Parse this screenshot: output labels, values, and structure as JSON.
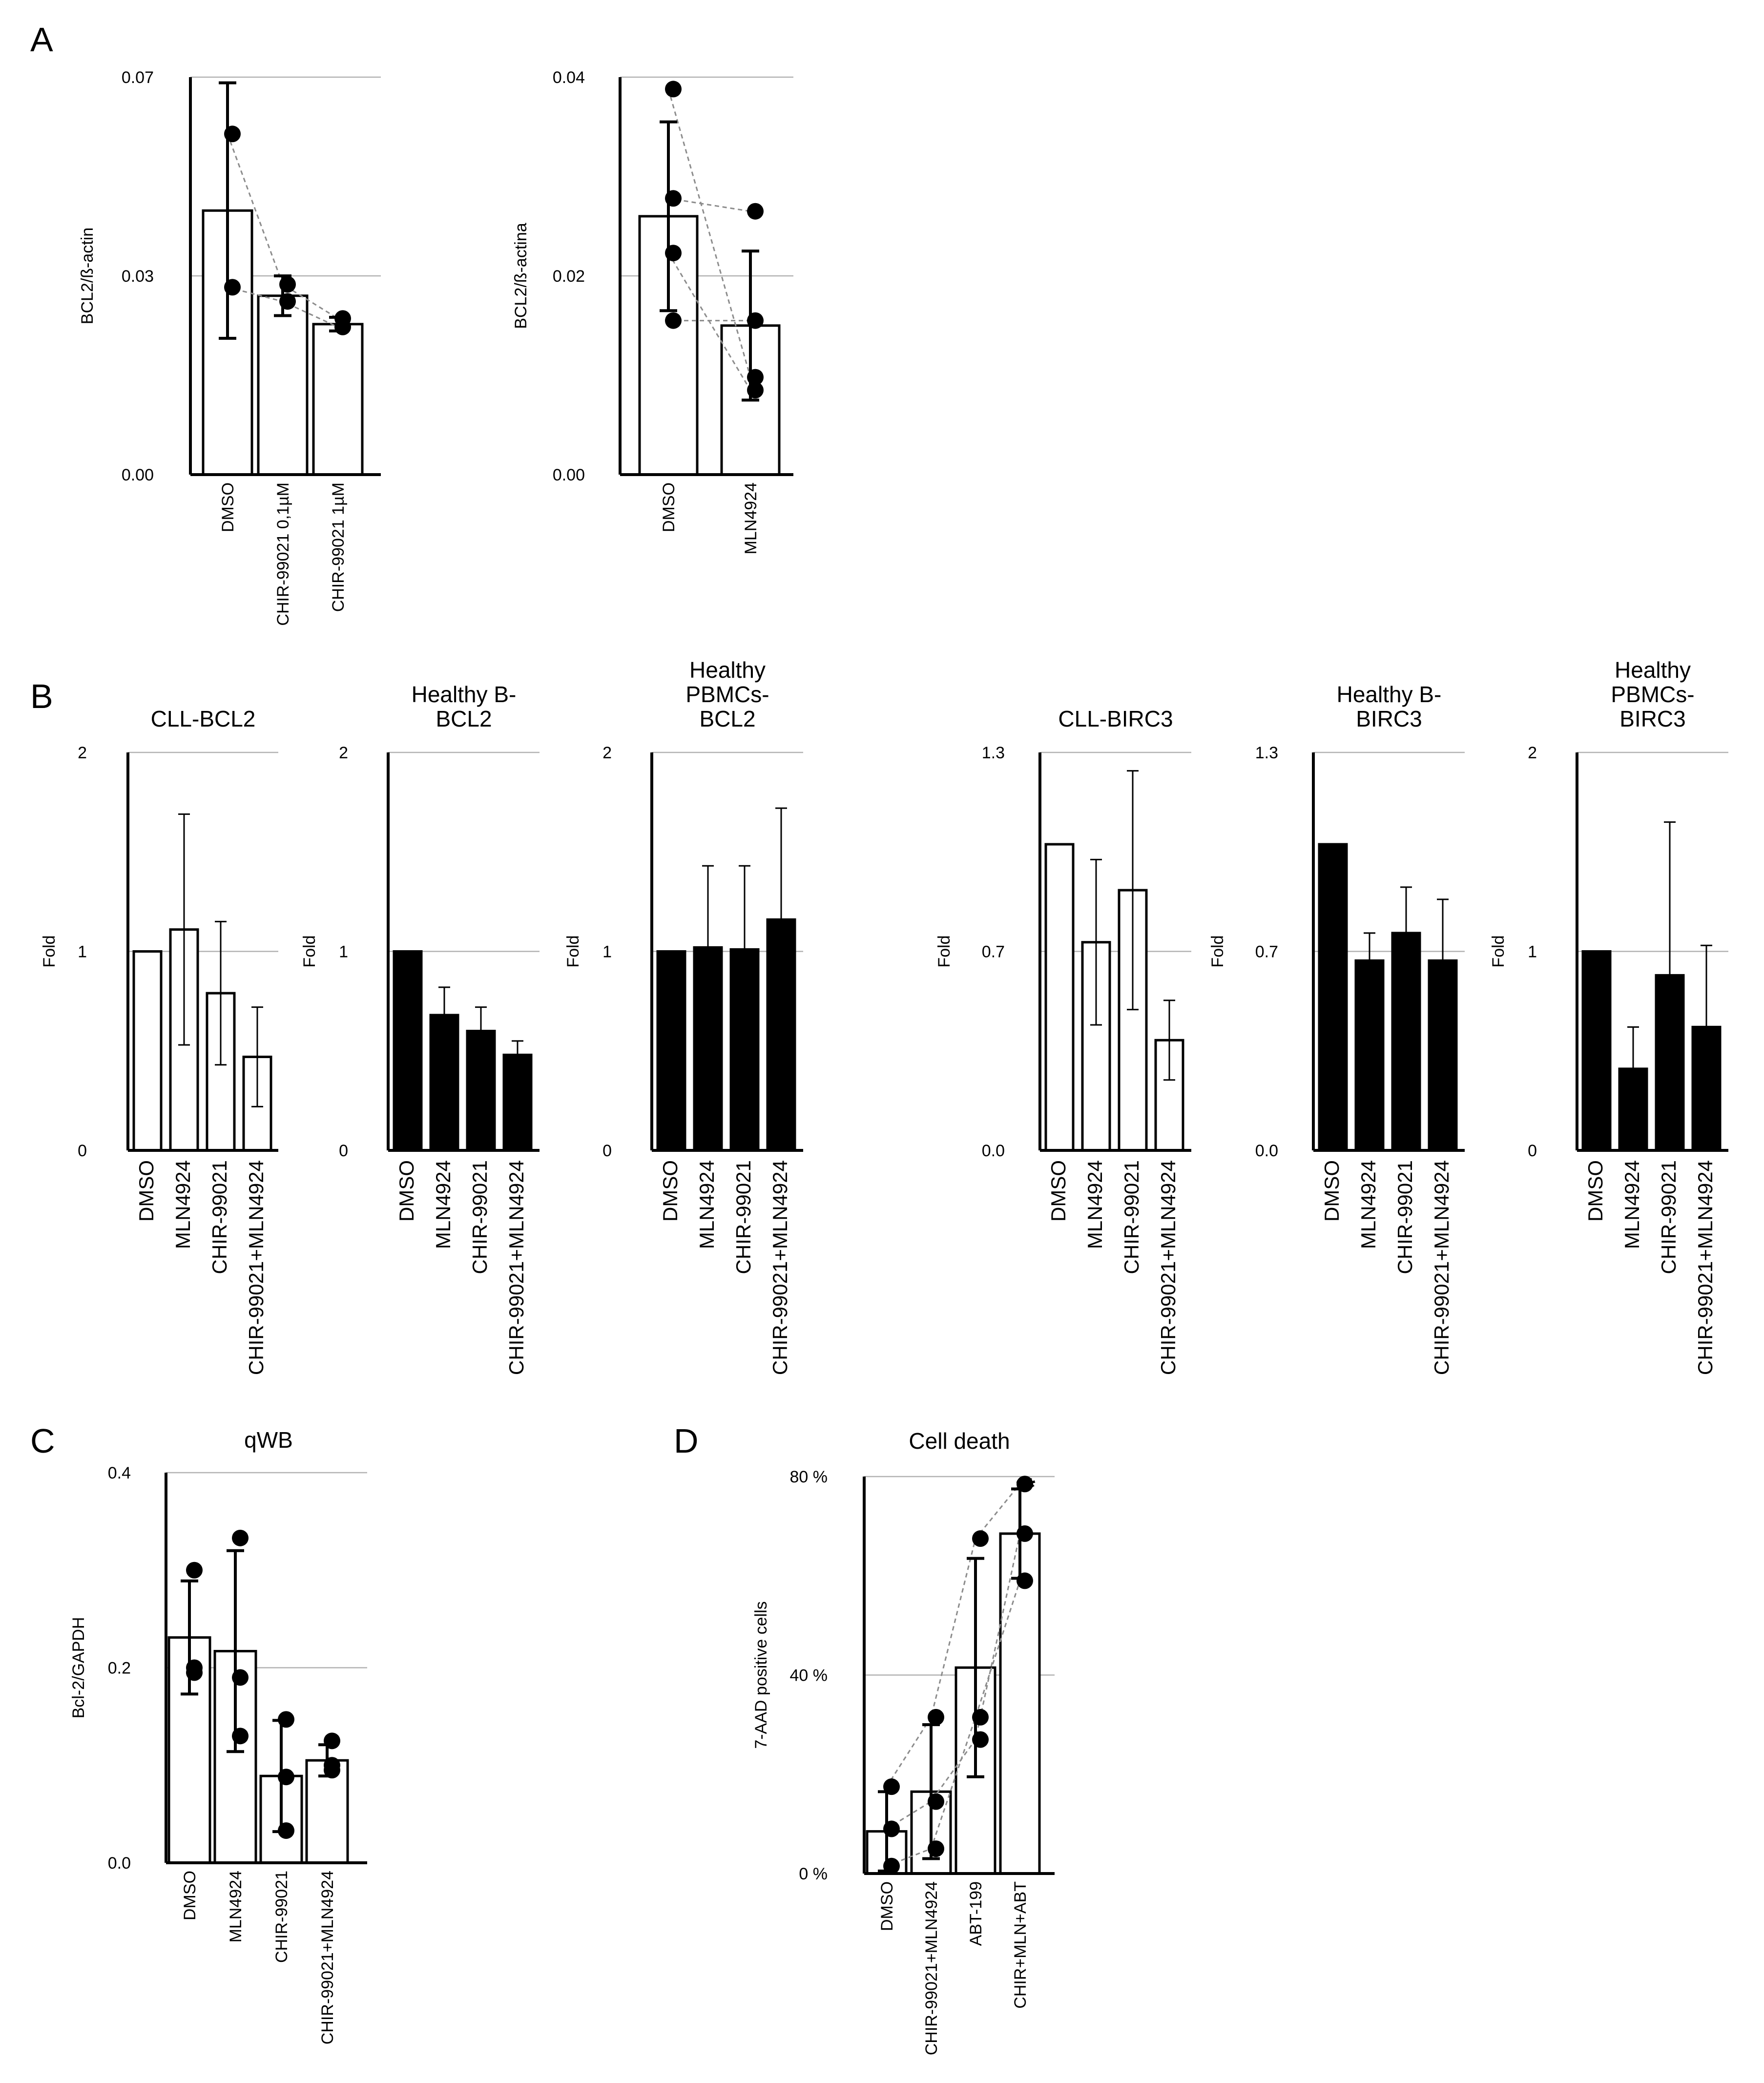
{
  "panel_labels": {
    "A": "A",
    "B": "B",
    "C": "C",
    "D": "D"
  },
  "colors": {
    "open_bar": "#ffffff",
    "filled_bar": "#000000",
    "axis": "#000000",
    "grid": "#b3b3b3",
    "paired_line": "#8c8c8c"
  },
  "chart_data": [
    {
      "id": "A1",
      "type": "bar",
      "title": "",
      "ylabel": "BCL2/ß-actin",
      "ylim": [
        0,
        0.07
      ],
      "yticks": [
        "0.00",
        "0.03",
        "0.07"
      ],
      "gridlines": [
        0.035,
        0.07
      ],
      "categories": [
        "DMSO",
        "CHIR-99021 0,1µM",
        "CHIR-99021 1µM"
      ],
      "values": [
        0.0465,
        0.0315,
        0.0265
      ],
      "errors": [
        0.0225,
        0.0035,
        0.0012
      ],
      "points": [
        [
          0.06,
          0.033
        ],
        [
          0.0335,
          0.0305
        ],
        [
          0.0275,
          0.026
        ]
      ],
      "paired_lines": [
        [
          0.06,
          0.0335,
          0.0275
        ],
        [
          0.033,
          0.0305,
          0.026
        ]
      ],
      "fill": "open"
    },
    {
      "id": "A2",
      "type": "bar",
      "title": "",
      "ylabel": "BCL2/ß-actina",
      "ylim": [
        0,
        0.04
      ],
      "yticks": [
        "0.00",
        "0.02",
        "0.04"
      ],
      "gridlines": [
        0.02,
        0.04
      ],
      "categories": [
        "DMSO",
        "MLN4924"
      ],
      "values": [
        0.026,
        0.015
      ],
      "errors": [
        0.0095,
        0.0075
      ],
      "points": [
        [
          0.0388,
          0.0278,
          0.0223,
          0.0155
        ],
        [
          0.0265,
          0.0155,
          0.0098,
          0.0085
        ]
      ],
      "paired_lines": [
        [
          0.0388,
          0.0098
        ],
        [
          0.0278,
          0.0265
        ],
        [
          0.0223,
          0.0085
        ],
        [
          0.0155,
          0.0155
        ]
      ],
      "fill": "open"
    },
    {
      "id": "B1",
      "type": "bar",
      "title": "CLL-BCL2",
      "ylabel": "Fold",
      "ylim": [
        0,
        2
      ],
      "yticks": [
        "0",
        "1",
        "2"
      ],
      "gridlines": [
        1,
        2
      ],
      "categories": [
        "DMSO",
        "MLN4924",
        "CHIR-99021",
        "CHIR-99021+MLN4924"
      ],
      "values": [
        1.0,
        1.11,
        0.79,
        0.47
      ],
      "errors": [
        0,
        0.58,
        0.36,
        0.25
      ],
      "fill": "open"
    },
    {
      "id": "B2",
      "type": "bar",
      "title": "Healthy B-BCL2",
      "title_lines": [
        "Healthy B-",
        "BCL2"
      ],
      "ylabel": "Fold",
      "ylim": [
        0,
        2
      ],
      "yticks": [
        "0",
        "1",
        "2"
      ],
      "gridlines": [
        1,
        2
      ],
      "categories": [
        "DMSO",
        "MLN4924",
        "CHIR-99021",
        "CHIR-99021+MLN4924"
      ],
      "values": [
        1.0,
        0.68,
        0.6,
        0.48
      ],
      "errors": [
        0,
        0.14,
        0.12,
        0.07
      ],
      "fill": "filled"
    },
    {
      "id": "B3",
      "type": "bar",
      "title": "Healthy PBMCs-BCL2",
      "title_lines": [
        "Healthy",
        "PBMCs-",
        "BCL2"
      ],
      "ylabel": "Fold",
      "ylim": [
        0,
        2
      ],
      "yticks": [
        "0",
        "1",
        "2"
      ],
      "gridlines": [
        1,
        2
      ],
      "categories": [
        "DMSO",
        "MLN4924",
        "CHIR-99021",
        "CHIR-99021+MLN4924"
      ],
      "values": [
        1.0,
        1.02,
        1.01,
        1.16
      ],
      "errors": [
        0,
        0.41,
        0.42,
        0.56
      ],
      "fill": "filled"
    },
    {
      "id": "B4",
      "type": "bar",
      "title": "CLL-BIRC3",
      "ylabel": "Fold",
      "ylim": [
        0,
        1.3
      ],
      "yticks": [
        "0.0",
        "0.7",
        "1.3"
      ],
      "gridlines": [
        0.65,
        1.3
      ],
      "categories": [
        "DMSO",
        "MLN4924",
        "CHIR-99021",
        "CHIR-99021+MLN4924"
      ],
      "values": [
        1.0,
        0.68,
        0.85,
        0.36
      ],
      "errors": [
        0,
        0.27,
        0.39,
        0.13
      ],
      "fill": "open"
    },
    {
      "id": "B5",
      "type": "bar",
      "title": "Healthy B-BIRC3",
      "title_lines": [
        "Healthy B-",
        "BIRC3"
      ],
      "ylabel": "Fold",
      "ylim": [
        0,
        1.3
      ],
      "yticks": [
        "0.0",
        "0.7",
        "1.3"
      ],
      "gridlines": [
        0.65,
        1.3
      ],
      "categories": [
        "DMSO",
        "MLN4924",
        "CHIR-99021",
        "CHIR-99021+MLN4924"
      ],
      "values": [
        1.0,
        0.62,
        0.71,
        0.62
      ],
      "errors": [
        0,
        0.09,
        0.15,
        0.2
      ],
      "fill": "filled"
    },
    {
      "id": "B6",
      "type": "bar",
      "title": "Healthy PBMCs-BIRC3",
      "title_lines": [
        "Healthy",
        "PBMCs-",
        "BIRC3"
      ],
      "ylabel": "Fold",
      "ylim": [
        0,
        2
      ],
      "yticks": [
        "0",
        "1",
        "2"
      ],
      "gridlines": [
        1,
        2
      ],
      "categories": [
        "DMSO",
        "MLN4924",
        "CHIR-99021",
        "CHIR-99021+MLN4924"
      ],
      "values": [
        1.0,
        0.41,
        0.88,
        0.62
      ],
      "errors": [
        0,
        0.21,
        0.77,
        0.41
      ],
      "fill": "filled"
    },
    {
      "id": "C",
      "type": "bar",
      "title": "qWB",
      "ylabel": "Bcl-2/GAPDH",
      "ylim": [
        0,
        0.4
      ],
      "yticks": [
        "0.0",
        "0.2",
        "0.4"
      ],
      "gridlines": [
        0.2,
        0.4
      ],
      "categories": [
        "DMSO",
        "MLN4924",
        "CHIR-99021",
        "CHIR-99021+MLN4924"
      ],
      "values": [
        0.231,
        0.217,
        0.089,
        0.105
      ],
      "errors": [
        0.058,
        0.103,
        0.057,
        0.016
      ],
      "points": [
        [
          0.3,
          0.2,
          0.195
        ],
        [
          0.333,
          0.19,
          0.13
        ],
        [
          0.147,
          0.088,
          0.033
        ],
        [
          0.125,
          0.1,
          0.095
        ]
      ],
      "paired_lines": [],
      "fill": "open"
    },
    {
      "id": "D",
      "type": "bar",
      "title": "Cell death",
      "ylabel": "7-AAD positive cells",
      "ylim": [
        0,
        80
      ],
      "yticks": [
        "0 %",
        "40 %",
        "80 %"
      ],
      "gridlines": [
        40,
        80
      ],
      "categories": [
        "DMSO",
        "CHIR-99021+MLN4924",
        "ABT-199",
        "CHIR+MLN+ABT"
      ],
      "values": [
        8.5,
        16.5,
        41.5,
        68.5
      ],
      "errors": [
        8.0,
        13.5,
        22.0,
        9.0
      ],
      "points": [
        [
          17.5,
          9.0,
          1.5
        ],
        [
          31.5,
          14.5,
          5.0
        ],
        [
          67.5,
          31.5,
          27.0
        ],
        [
          78.5,
          68.5,
          59.0
        ]
      ],
      "paired_lines": [
        [
          17.5,
          31.5,
          67.5,
          78.5
        ],
        [
          9.0,
          14.5,
          27.0,
          68.5
        ],
        [
          1.5,
          5.0,
          31.5,
          59.0
        ]
      ],
      "annotation": {
        "label": "**",
        "category": "CHIR+MLN+ABT"
      },
      "fill": "open"
    }
  ]
}
